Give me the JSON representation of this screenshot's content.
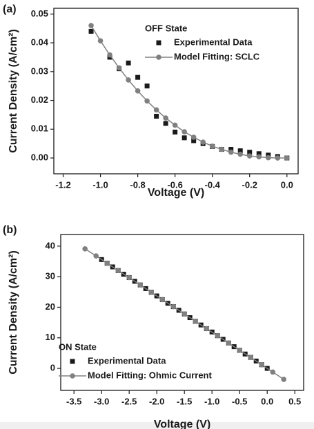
{
  "chart_data": [
    {
      "type": "scatter",
      "panel_label": "(a)",
      "annotation": "OFF State",
      "x_label": "Voltage (V)",
      "y_label": "Current Density (A/cm²)",
      "xlim": [
        -1.25,
        0.06
      ],
      "ylim": [
        -0.0055,
        0.052
      ],
      "xticks": [
        -1.2,
        {
          "value": -1.0,
          "label": "-1.0"
        },
        -0.8,
        -0.6,
        -0.4,
        -0.2,
        {
          "value": 0,
          "label": "0.0"
        }
      ],
      "yticks": [
        {
          "value": 0,
          "label": "0.00"
        },
        0.01,
        0.02,
        0.03,
        0.04,
        0.05
      ],
      "legend": "upper right",
      "series": [
        {
          "name": "Experimental Data",
          "color": "#1a1a1a",
          "marker": "square",
          "line": false,
          "x": [
            -1.05,
            -0.95,
            -0.9,
            -0.85,
            -0.8,
            -0.75,
            -0.7,
            -0.65,
            -0.6,
            -0.55,
            -0.5,
            -0.45,
            -0.4,
            -0.35,
            -0.3,
            -0.25,
            -0.2,
            -0.15,
            -0.1,
            -0.05,
            0
          ],
          "values": [
            0.044,
            0.035,
            0.031,
            0.033,
            0.028,
            0.025,
            0.0145,
            0.012,
            0.009,
            0.007,
            0.006,
            0.005,
            0.004,
            0.003,
            0.003,
            0.0025,
            0.002,
            0.0015,
            0.001,
            0.0005,
            0
          ]
        },
        {
          "name": "Model Fitting: SCLC",
          "color": "#808080",
          "marker": "circle",
          "line": true,
          "x": [
            -1.05,
            -1.0,
            -0.95,
            -0.9,
            -0.85,
            -0.8,
            -0.75,
            -0.7,
            -0.65,
            -0.6,
            -0.55,
            -0.5,
            -0.45,
            -0.4,
            -0.35,
            -0.3,
            -0.25,
            -0.2,
            -0.15,
            -0.1,
            -0.05,
            0
          ],
          "values": [
            0.046,
            0.0407,
            0.0358,
            0.0313,
            0.0271,
            0.0233,
            0.0198,
            0.0167,
            0.0139,
            0.0114,
            0.0091,
            0.0072,
            0.0055,
            0.0041,
            0.003,
            0.002,
            0.0013,
            0.0007,
            0.0004,
            0.0001,
            0,
            0
          ]
        }
      ]
    },
    {
      "type": "scatter",
      "panel_label": "(b)",
      "annotation": "ON State",
      "x_label": "Voltage (V)",
      "y_label": "Current Density (A/cm²)",
      "xlim": [
        -3.74,
        0.66
      ],
      "ylim": [
        -7.2,
        43.8
      ],
      "xticks": [
        -3.5,
        {
          "value": -3.0,
          "label": "-3.0"
        },
        -2.5,
        {
          "value": -2.0,
          "label": "-2.0"
        },
        -1.5,
        {
          "value": -1.0,
          "label": "-1.0"
        },
        -0.5,
        {
          "value": 0,
          "label": "0.0"
        },
        0.5
      ],
      "yticks": [
        0,
        10,
        20,
        30,
        40
      ],
      "legend": "lower left",
      "series": [
        {
          "name": "Experimental Data",
          "color": "#1a1a1a",
          "marker": "square",
          "line": false,
          "x": [
            -3.0,
            -2.9,
            -2.8,
            -2.7,
            -2.6,
            -2.5,
            -2.4,
            -2.3,
            -2.2,
            -2.1,
            -2.0,
            -1.9,
            -1.8,
            -1.7,
            -1.6,
            -1.5,
            -1.4,
            -1.3,
            -1.2,
            -1.1,
            -1.0,
            -0.9,
            -0.8,
            -0.7,
            -0.6,
            -0.5,
            -0.4,
            -0.3,
            -0.2,
            -0.1,
            0
          ],
          "values": [
            35.6,
            34.4,
            33.2,
            32.0,
            30.8,
            29.7,
            28.5,
            27.3,
            26.1,
            24.9,
            23.7,
            22.5,
            21.3,
            20.2,
            19.0,
            17.8,
            16.6,
            15.4,
            14.2,
            13.0,
            11.9,
            10.7,
            9.5,
            8.3,
            7.1,
            5.9,
            4.7,
            3.6,
            2.4,
            1.2,
            0
          ]
        },
        {
          "name": "Model Fitting: Ohmic Current",
          "color": "#808080",
          "marker": "circle",
          "line": true,
          "x": [
            -3.3,
            -3.1,
            -2.9,
            -2.7,
            -2.5,
            -2.3,
            -2.1,
            -1.9,
            -1.7,
            -1.5,
            -1.3,
            -1.1,
            -0.9,
            -0.7,
            -0.5,
            -0.3,
            -0.1,
            0.1,
            0.3
          ],
          "values": [
            39.1,
            36.8,
            34.4,
            32.0,
            29.7,
            27.3,
            24.9,
            22.5,
            20.2,
            17.8,
            15.4,
            13.0,
            10.7,
            8.3,
            5.9,
            3.6,
            1.2,
            -1.2,
            -3.6
          ]
        }
      ]
    }
  ]
}
